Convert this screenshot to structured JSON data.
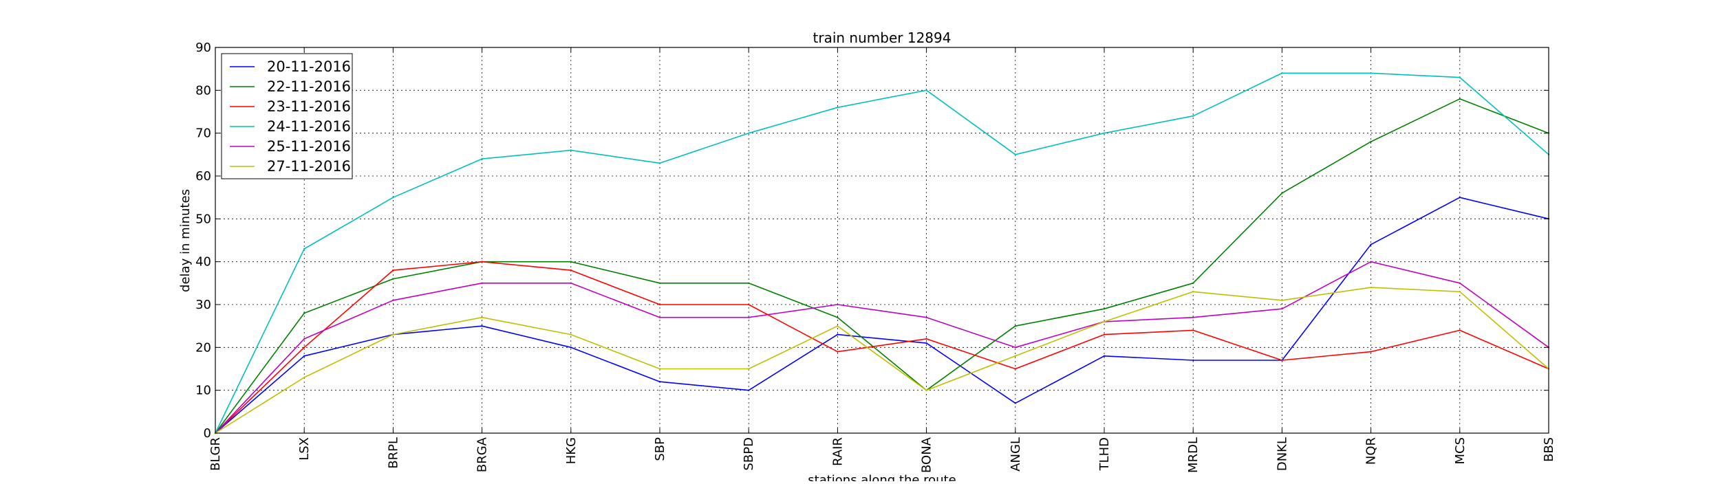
{
  "chart_data": {
    "type": "line",
    "title": "train number 12894",
    "xlabel": "stations along the route",
    "ylabel": "delay in minutes",
    "ylim": [
      0,
      90
    ],
    "yticks": [
      "0",
      "10",
      "20",
      "30",
      "40",
      "50",
      "60",
      "70",
      "80",
      "90"
    ],
    "grid": true,
    "legend_position": "top-left",
    "categories": [
      "BLGR",
      "LSX",
      "BRPL",
      "BRGA",
      "HKG",
      "SBP",
      "SBPD",
      "RAIR",
      "BONA",
      "ANGL",
      "TLHD",
      "MRDL",
      "DNKL",
      "NQR",
      "MCS",
      "BBS"
    ],
    "series": [
      {
        "name": "20-11-2016",
        "color": "#0000ff",
        "values": [
          0,
          18,
          23,
          25,
          20,
          12,
          10,
          23,
          21,
          7,
          18,
          17,
          17,
          44,
          55,
          50
        ]
      },
      {
        "name": "22-11-2016",
        "color": "#008000",
        "values": [
          0,
          28,
          36,
          40,
          40,
          35,
          35,
          27,
          10,
          25,
          29,
          35,
          56,
          68,
          78,
          70
        ]
      },
      {
        "name": "23-11-2016",
        "color": "#ff0000",
        "values": [
          0,
          20,
          38,
          40,
          38,
          30,
          30,
          19,
          22,
          15,
          23,
          24,
          17,
          19,
          24,
          15
        ]
      },
      {
        "name": "24-11-2016",
        "color": "#00bfbf",
        "values": [
          0,
          43,
          55,
          64,
          66,
          63,
          70,
          76,
          80,
          65,
          70,
          74,
          84,
          84,
          83,
          65
        ]
      },
      {
        "name": "25-11-2016",
        "color": "#bf00bf",
        "values": [
          0,
          22,
          31,
          35,
          35,
          27,
          27,
          30,
          27,
          20,
          26,
          27,
          29,
          40,
          35,
          20
        ]
      },
      {
        "name": "27-11-2016",
        "color": "#bfbf00",
        "values": [
          0,
          13,
          23,
          27,
          23,
          15,
          15,
          25,
          10,
          18,
          26,
          33,
          31,
          34,
          33,
          15
        ]
      }
    ]
  }
}
